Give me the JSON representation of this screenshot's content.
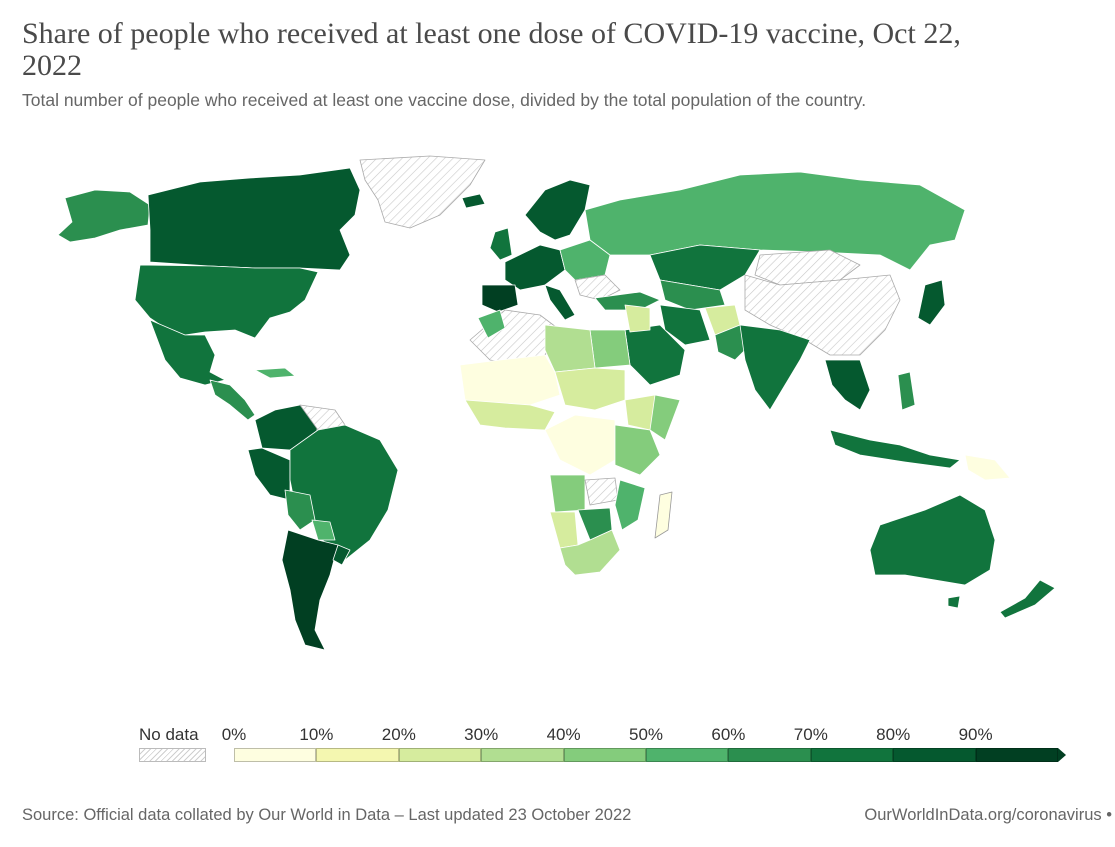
{
  "title": "Share of people who received at least one dose of COVID-19 vaccine, Oct 22, 2022",
  "subtitle": "Total number of people who received at least one vaccine dose, divided by the total population of the country.",
  "legend": {
    "no_data_label": "No data",
    "ticks": [
      "0%",
      "10%",
      "20%",
      "30%",
      "40%",
      "50%",
      "60%",
      "70%",
      "80%",
      "90%"
    ],
    "colors": [
      "#fefee0",
      "#f4f7b0",
      "#d6ec9e",
      "#b1de91",
      "#84cc7c",
      "#4fb36c",
      "#2b8f4f",
      "#11743d",
      "#05592f",
      "#013f22"
    ]
  },
  "footer": {
    "source": "Source: Official data collated by Our World in Data – Last updated 23 October 2022",
    "link": "OurWorldInData.org/coronavirus •"
  }
}
